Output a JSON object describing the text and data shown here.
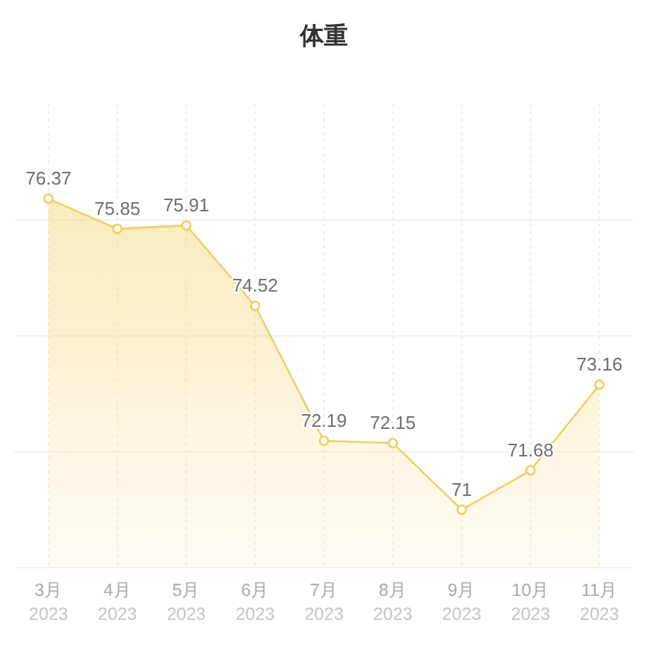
{
  "chart_data": {
    "type": "area",
    "title": "体重",
    "categories": [
      "3月\n2023",
      "4月\n2023",
      "5月\n2023",
      "6月\n2023",
      "7月\n2023",
      "8月\n2023",
      "9月\n2023",
      "10月\n2023",
      "11月\n2023"
    ],
    "values": [
      76.37,
      75.85,
      75.91,
      74.52,
      72.19,
      72.15,
      71,
      71.68,
      73.16
    ],
    "color": "#f0cf5e",
    "ylim": [
      70,
      78
    ],
    "yticks": [
      {
        "value": 70,
        "label": null
      },
      {
        "value": 72,
        "label": null
      },
      {
        "value": 74,
        "label": null
      },
      {
        "value": 76,
        "label": null
      }
    ],
    "grid": true,
    "marker": "circle",
    "line_style": "solid",
    "data_labels": true,
    "tick_labels": "x"
  }
}
